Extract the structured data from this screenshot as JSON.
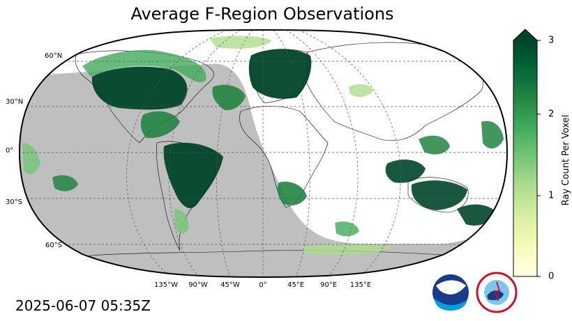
{
  "title": "Average F-Region Observations",
  "timestamp": "2025-06-07 05:35Z",
  "latitude_labels": [
    "60°N",
    "30°N",
    "0°",
    "30°S",
    "60°S"
  ],
  "longitude_labels": [
    "135°W",
    "90°W",
    "45°W",
    "0°",
    "45°E",
    "90°E",
    "135°E"
  ],
  "colorbar": {
    "label": "Ray Count Per Voxel",
    "ticks": [
      "0",
      "1",
      "2",
      "3"
    ],
    "min": 0,
    "max": 3,
    "extend": "max",
    "colors": [
      "#ffffe5",
      "#f7fcb9",
      "#d9f0a3",
      "#addd8e",
      "#78c679",
      "#41ab5d",
      "#238443",
      "#006837",
      "#004529"
    ]
  },
  "map": {
    "projection": "Robinson",
    "night_shade_color": "#bfbfbf",
    "land_outline_color": "#000000"
  },
  "logos": {
    "noaa_text": "NOAA",
    "nws_text": "NATIONAL WEATHER SERVICE"
  }
}
